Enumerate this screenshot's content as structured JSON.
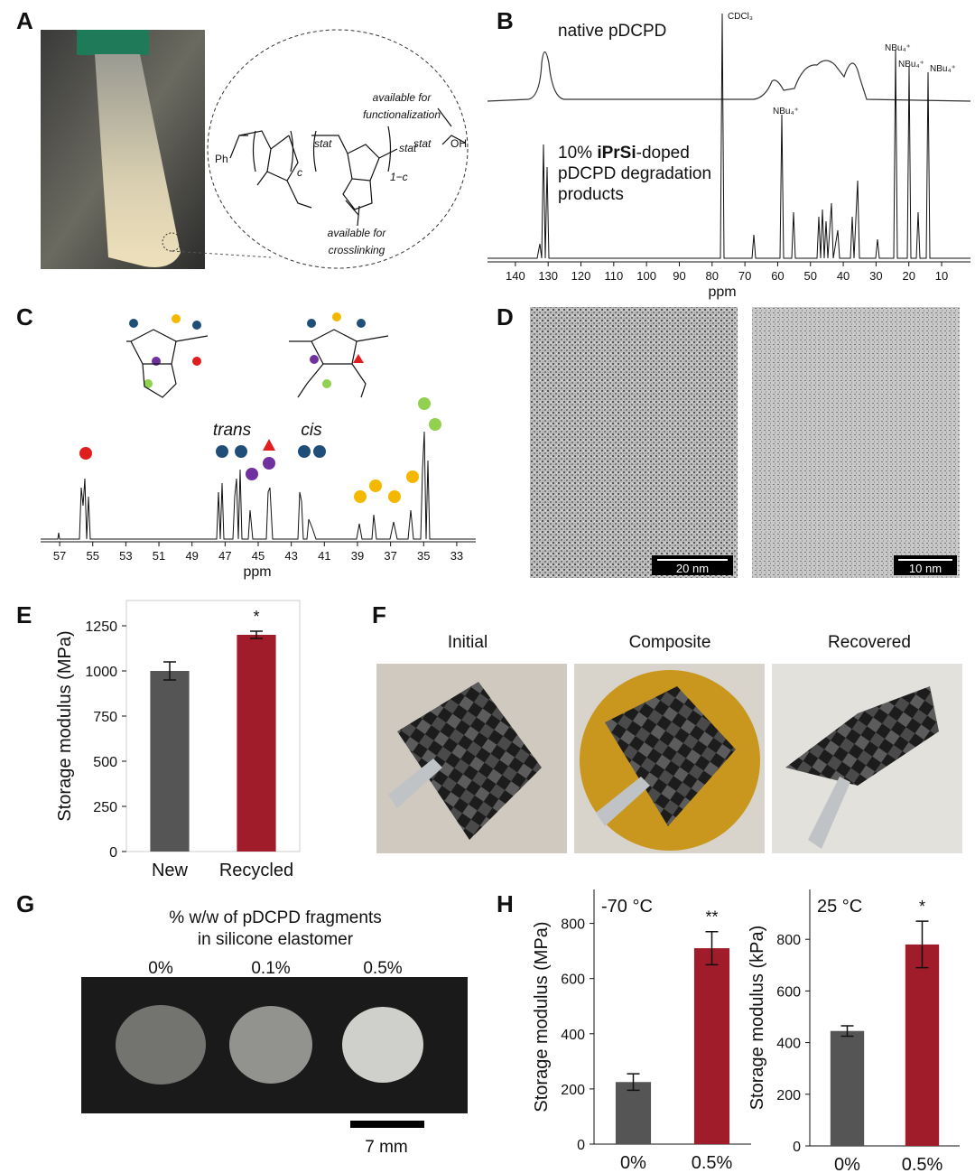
{
  "panels": {
    "labels": [
      "A",
      "B",
      "C",
      "D",
      "E",
      "F",
      "G",
      "H"
    ]
  },
  "panel_a": {
    "annotations": [
      "available for",
      "functionalization",
      "available for",
      "crosslinking"
    ],
    "structure_labels": [
      "Ph",
      "stat",
      "c",
      "stat",
      "1−c",
      "stat",
      "OH"
    ]
  },
  "panel_b": {
    "trace_1": "native pDCPD",
    "trace_2": {
      "pre": "10% ",
      "bold": "iPrSi",
      "post": "-doped",
      "line2": "pDCPD degradation",
      "line3": "products"
    },
    "peak_labels": [
      "CDCl₃",
      "NBu₄⁺",
      "NBu₄⁺",
      "NBu₄⁺",
      "NBu₄⁺"
    ],
    "xlabel": "ppm",
    "xlim": [
      148.5,
      1.2
    ],
    "xticks": [
      140,
      130,
      120,
      110,
      100,
      90,
      80,
      70,
      60,
      50,
      40,
      30,
      20,
      10
    ]
  },
  "panel_c": {
    "labels": [
      "trans",
      "cis"
    ],
    "xlabel": "ppm",
    "xlim": [
      58.15,
      31.85
    ],
    "xticks": [
      57,
      55,
      53,
      51,
      49,
      47,
      45,
      43,
      41,
      39,
      37,
      35,
      33
    ]
  },
  "panel_d": {
    "scale_bars": [
      "20 nm",
      "10 nm"
    ]
  },
  "panel_f": {
    "titles": [
      "Initial",
      "Composite",
      "Recovered"
    ]
  },
  "panel_g": {
    "title": [
      "% w/w of pDCPD fragments",
      "in silicone elastomer"
    ],
    "samples": [
      "0%",
      "0.1%",
      "0.5%"
    ],
    "scale_bar": "7 mm"
  },
  "chart_data": [
    {
      "type": "bar",
      "ylabel": "Storage modulus (MPa)",
      "categories": [
        "New",
        "Recycled"
      ],
      "values": [
        1000,
        1200
      ],
      "errors": [
        50,
        20
      ],
      "colors": [
        "#555555",
        "#a01c2a"
      ],
      "ylim": [
        0,
        1390
      ],
      "yticks": [
        0,
        250,
        500,
        750,
        1000,
        1250
      ],
      "annotation": "*",
      "frame": true
    },
    {
      "type": "bar",
      "title": "-70 °C",
      "ylabel": "Storage modulus (MPa)",
      "categories": [
        "0%",
        "0.5%"
      ],
      "values": [
        225,
        710
      ],
      "errors": [
        30,
        60
      ],
      "colors": [
        "#555555",
        "#a01c2a"
      ],
      "ylim": [
        0,
        923
      ],
      "yticks": [
        0,
        200,
        400,
        600,
        800
      ],
      "annotation": "**",
      "frame": false
    },
    {
      "type": "bar",
      "title": "25 °C",
      "ylabel": "Storage modulus (kPa)",
      "categories": [
        "0%",
        "0.5%"
      ],
      "values": [
        445,
        780
      ],
      "errors": [
        20,
        90
      ],
      "colors": [
        "#555555",
        "#a01c2a"
      ],
      "ylim": [
        0,
        993
      ],
      "yticks": [
        0,
        200,
        400,
        600,
        800
      ],
      "annotation": "*",
      "frame": false
    }
  ]
}
